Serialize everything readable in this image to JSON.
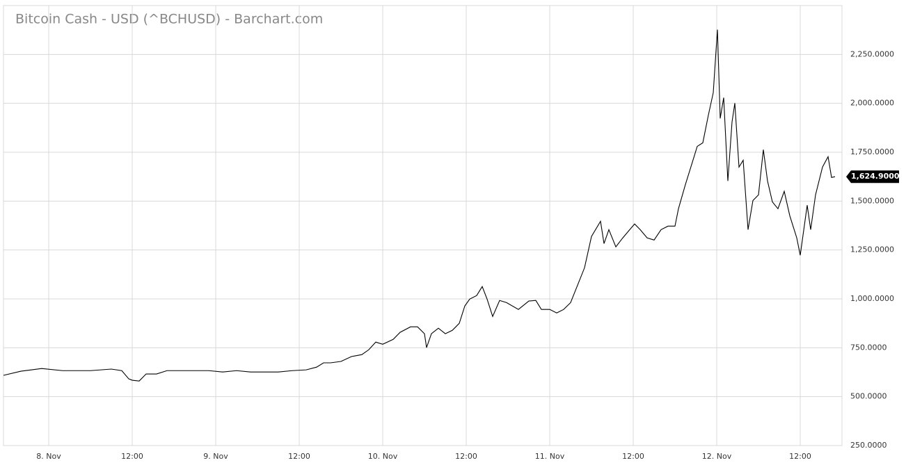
{
  "chart_data": {
    "type": "line",
    "title": "Bitcoin Cash - USD (^BCHUSD) - Barchart.com",
    "x": [
      -6.5,
      -4.0,
      -1.0,
      2.0,
      6.0,
      9.0,
      10.5,
      11.5,
      12.0,
      13.0,
      14.0,
      15.5,
      17.0,
      19.0,
      21.0,
      23.0,
      25.0,
      27.0,
      29.0,
      31.0,
      33.0,
      35.0,
      37.0,
      38.5,
      39.5,
      40.5,
      42.0,
      43.5,
      45.0,
      46.0,
      47.0,
      48.0,
      49.5,
      50.5,
      52.0,
      53.0,
      54.0,
      54.3,
      55.0,
      56.0,
      57.0,
      58.0,
      59.0,
      59.8,
      60.5,
      61.5,
      62.3,
      63.0,
      63.8,
      64.8,
      65.8,
      67.5,
      69.0,
      70.0,
      70.8,
      72.0,
      73.0,
      74.0,
      75.0,
      76.0,
      77.0,
      78.0,
      79.3,
      79.8,
      80.5,
      81.5,
      82.5,
      83.5,
      84.2,
      85.0,
      86.0,
      87.0,
      88.0,
      89.0,
      90.0,
      90.5,
      91.5,
      92.5,
      93.2,
      94.0,
      94.8,
      95.5,
      96.1,
      96.5,
      97.0,
      97.6,
      98.2,
      98.6,
      99.2,
      99.8,
      100.5,
      101.2,
      102.0,
      102.7,
      103.3,
      104.0,
      104.8,
      105.7,
      106.5,
      107.5,
      108.0,
      109.0,
      109.5,
      110.2,
      111.2,
      112.0,
      112.5,
      113.0
    ],
    "series": [
      {
        "name": "^BCHUSD",
        "color": "#000000",
        "values": [
          609,
          630,
          644,
          633,
          633,
          641,
          633,
          591,
          584,
          580,
          616,
          616,
          633,
          633,
          633,
          633,
          626,
          633,
          626,
          626,
          626,
          633,
          637,
          651,
          673,
          673,
          680,
          705,
          715,
          740,
          779,
          768,
          793,
          829,
          857,
          857,
          822,
          751,
          822,
          850,
          822,
          839,
          875,
          964,
          999,
          1017,
          1063,
          999,
          910,
          992,
          981,
          946,
          989,
          992,
          946,
          946,
          928,
          946,
          981,
          1070,
          1159,
          1319,
          1397,
          1283,
          1354,
          1266,
          1312,
          1354,
          1383,
          1354,
          1312,
          1301,
          1354,
          1372,
          1372,
          1461,
          1585,
          1699,
          1780,
          1798,
          1940,
          2054,
          2377,
          1923,
          2029,
          1603,
          1905,
          2001,
          1674,
          1709,
          1354,
          1503,
          1532,
          1763,
          1603,
          1496,
          1461,
          1550,
          1425,
          1312,
          1223,
          1479,
          1354,
          1532,
          1674,
          1727,
          1621,
          1624.9
        ]
      }
    ],
    "current_price_label": "1,624.9000",
    "xlim": [
      -6.5,
      114
    ],
    "xticks": [
      {
        "value": 0,
        "label": "8. Nov"
      },
      {
        "value": 12,
        "label": "12:00"
      },
      {
        "value": 24,
        "label": "9. Nov"
      },
      {
        "value": 36,
        "label": "12:00"
      },
      {
        "value": 48,
        "label": "10. Nov"
      },
      {
        "value": 60,
        "label": "12:00"
      },
      {
        "value": 72,
        "label": "11. Nov"
      },
      {
        "value": 84,
        "label": "12:00"
      },
      {
        "value": 96,
        "label": "12. Nov"
      },
      {
        "value": 108,
        "label": "12:00"
      }
    ],
    "ylim": [
      250,
      2500
    ],
    "yticks": [
      {
        "value": 250,
        "label": "250.0000"
      },
      {
        "value": 500,
        "label": "500.0000"
      },
      {
        "value": 750,
        "label": "750.0000"
      },
      {
        "value": 1000,
        "label": "1,000.0000"
      },
      {
        "value": 1250,
        "label": "1,250.0000"
      },
      {
        "value": 1500,
        "label": "1,500.0000"
      },
      {
        "value": 1750,
        "label": "1,750.0000"
      },
      {
        "value": 2000,
        "label": "2,000.0000"
      },
      {
        "value": 2250,
        "label": "2,250.0000"
      }
    ],
    "grid": true
  }
}
